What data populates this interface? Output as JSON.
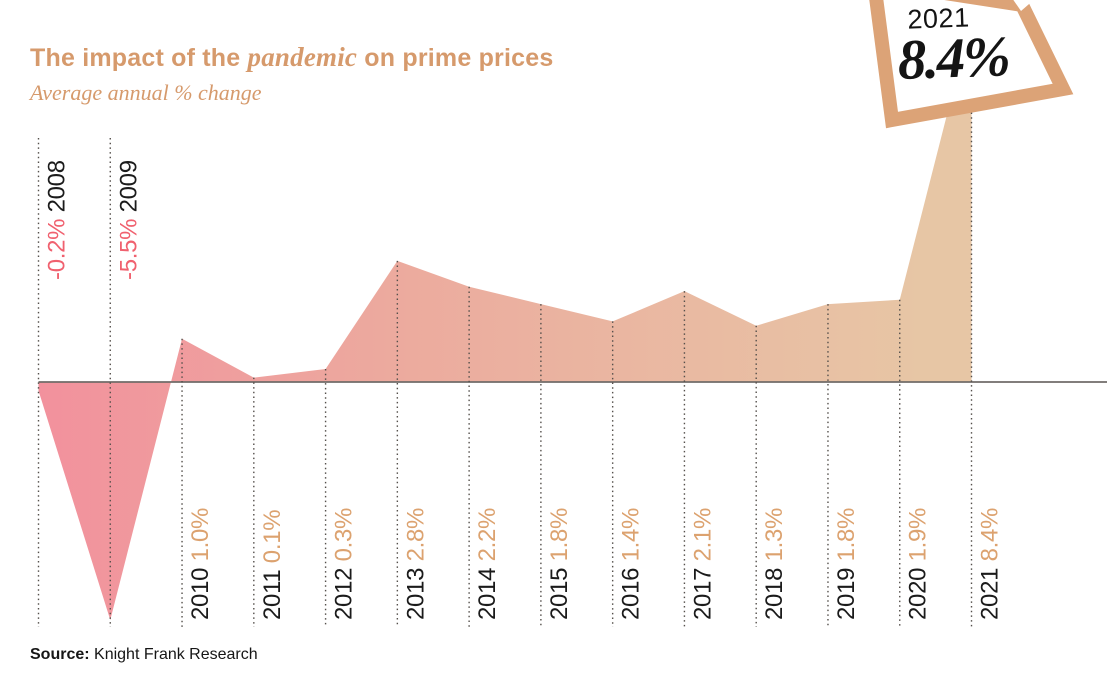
{
  "header": {
    "title_prefix": "The impact of the ",
    "title_italic": "pandemic",
    "title_suffix": " on prime prices",
    "subtitle": "Average annual % change"
  },
  "badge": {
    "year": "2021",
    "value": "8.4%"
  },
  "source": {
    "label": "Source:",
    "text": " Knight Frank Research"
  },
  "chart_data": {
    "type": "area",
    "title": "The impact of the pandemic on prime prices",
    "subtitle": "Average annual % change",
    "unit": "%",
    "categories": [
      "2008",
      "2009",
      "2010",
      "2011",
      "2012",
      "2013",
      "2014",
      "2015",
      "2016",
      "2017",
      "2018",
      "2019",
      "2020",
      "2021"
    ],
    "values": [
      -0.2,
      -5.5,
      1.0,
      0.1,
      0.3,
      2.8,
      2.2,
      1.8,
      1.4,
      2.1,
      1.3,
      1.8,
      1.9,
      8.4
    ],
    "labels": [
      "-0.2%",
      "-5.5%",
      "1.0%",
      "0.1%",
      "0.3%",
      "2.8%",
      "2.2%",
      "1.8%",
      "1.4%",
      "2.1%",
      "1.3%",
      "1.8%",
      "1.9%",
      "8.4%"
    ],
    "baseline": 0,
    "grid": "dotted-vertical-per-year",
    "legend": "none",
    "annotation": {
      "year": "2021",
      "value": "8.4%",
      "style": "tilted-frame-callout"
    },
    "colors": {
      "title": "#d69a6c",
      "year_label": "#1b1b1b",
      "negative_value_label": "#f0616f",
      "positive_value_label": "#dca26f",
      "gradient_left": "#f2919d",
      "gradient_mid": "#ecaa9e",
      "gradient_right": "#e7c6a5",
      "axis_line": "#716c69",
      "grid_line": "#55504c",
      "badge_frame": "#dca377"
    }
  }
}
